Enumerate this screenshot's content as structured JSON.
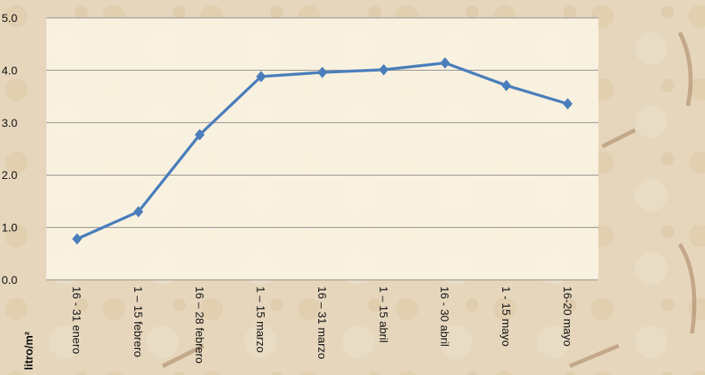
{
  "chart_data": {
    "type": "line",
    "y_label": "litro/m²",
    "categories": [
      "16 - 31 enero",
      "1 – 15 febrero",
      "16 – 28 febrero",
      "1 – 15 marzo",
      "16 – 31 marzo",
      "1 – 15 abril",
      "16 - 30 abril",
      "1 - 15 mayo",
      "16-20 mayo"
    ],
    "series": [
      {
        "name": "litro/m²",
        "color": "#4a7ebb",
        "values": [
          0.78,
          1.3,
          2.77,
          3.88,
          3.96,
          4.01,
          4.14,
          3.71,
          3.36
        ]
      }
    ],
    "ylim": [
      0,
      5
    ],
    "yticks": [
      {
        "value": 0,
        "label": "0.0"
      },
      {
        "value": 1,
        "label": "1.0"
      },
      {
        "value": 2,
        "label": "2.0"
      },
      {
        "value": 3,
        "label": "3.0"
      },
      {
        "value": 4,
        "label": "4.0"
      },
      {
        "value": 5,
        "label": "5.0"
      }
    ],
    "grid": true
  }
}
